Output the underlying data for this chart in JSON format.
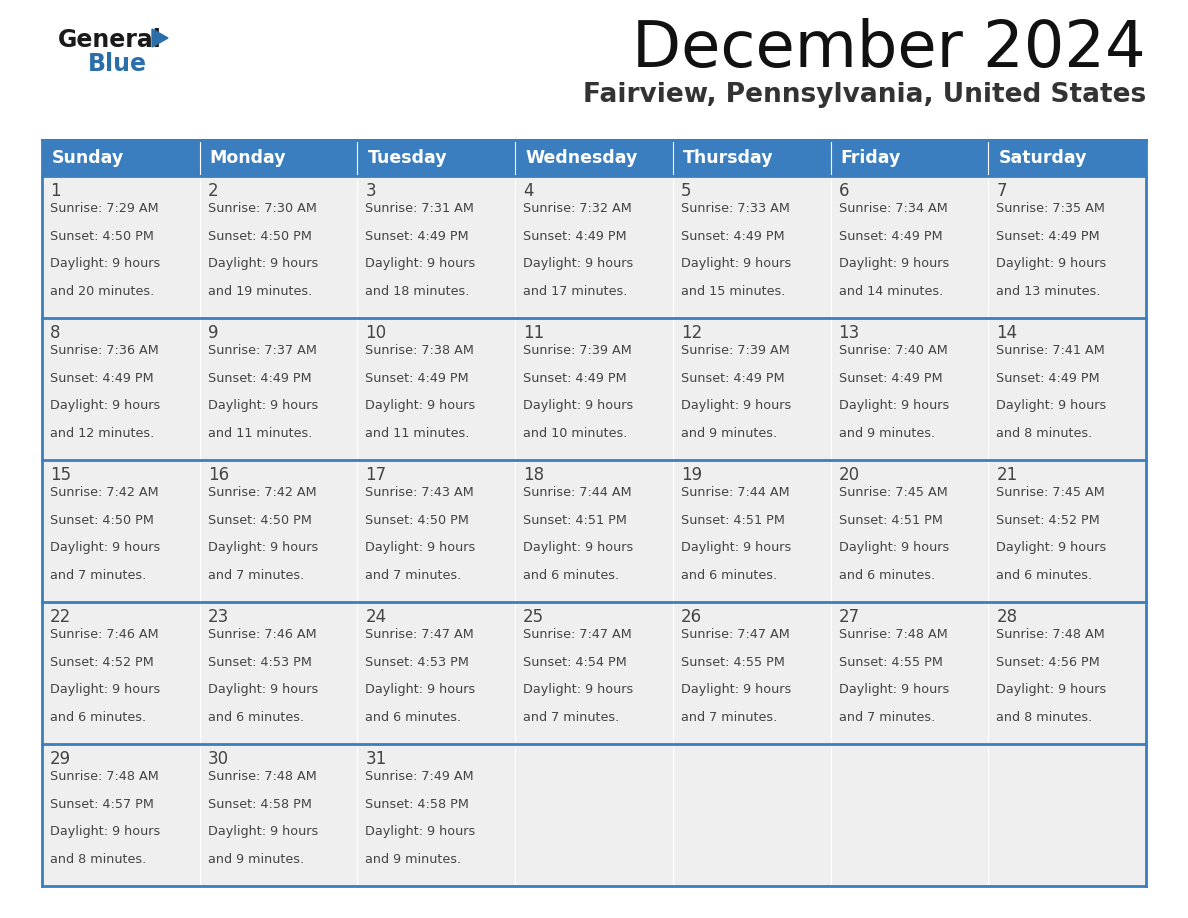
{
  "title": "December 2024",
  "subtitle": "Fairview, Pennsylvania, United States",
  "header_color": "#3A7EBF",
  "header_text_color": "#FFFFFF",
  "cell_bg_color": "#EFEFEF",
  "text_color": "#444444",
  "border_color": "#3A7EBF",
  "days_of_week": [
    "Sunday",
    "Monday",
    "Tuesday",
    "Wednesday",
    "Thursday",
    "Friday",
    "Saturday"
  ],
  "calendar_data": [
    [
      {
        "day": 1,
        "sunrise": "7:29 AM",
        "sunset": "4:50 PM",
        "daylight": "9 hours and 20 minutes"
      },
      {
        "day": 2,
        "sunrise": "7:30 AM",
        "sunset": "4:50 PM",
        "daylight": "9 hours and 19 minutes"
      },
      {
        "day": 3,
        "sunrise": "7:31 AM",
        "sunset": "4:49 PM",
        "daylight": "9 hours and 18 minutes"
      },
      {
        "day": 4,
        "sunrise": "7:32 AM",
        "sunset": "4:49 PM",
        "daylight": "9 hours and 17 minutes"
      },
      {
        "day": 5,
        "sunrise": "7:33 AM",
        "sunset": "4:49 PM",
        "daylight": "9 hours and 15 minutes"
      },
      {
        "day": 6,
        "sunrise": "7:34 AM",
        "sunset": "4:49 PM",
        "daylight": "9 hours and 14 minutes"
      },
      {
        "day": 7,
        "sunrise": "7:35 AM",
        "sunset": "4:49 PM",
        "daylight": "9 hours and 13 minutes"
      }
    ],
    [
      {
        "day": 8,
        "sunrise": "7:36 AM",
        "sunset": "4:49 PM",
        "daylight": "9 hours and 12 minutes"
      },
      {
        "day": 9,
        "sunrise": "7:37 AM",
        "sunset": "4:49 PM",
        "daylight": "9 hours and 11 minutes"
      },
      {
        "day": 10,
        "sunrise": "7:38 AM",
        "sunset": "4:49 PM",
        "daylight": "9 hours and 11 minutes"
      },
      {
        "day": 11,
        "sunrise": "7:39 AM",
        "sunset": "4:49 PM",
        "daylight": "9 hours and 10 minutes"
      },
      {
        "day": 12,
        "sunrise": "7:39 AM",
        "sunset": "4:49 PM",
        "daylight": "9 hours and 9 minutes"
      },
      {
        "day": 13,
        "sunrise": "7:40 AM",
        "sunset": "4:49 PM",
        "daylight": "9 hours and 9 minutes"
      },
      {
        "day": 14,
        "sunrise": "7:41 AM",
        "sunset": "4:49 PM",
        "daylight": "9 hours and 8 minutes"
      }
    ],
    [
      {
        "day": 15,
        "sunrise": "7:42 AM",
        "sunset": "4:50 PM",
        "daylight": "9 hours and 7 minutes"
      },
      {
        "day": 16,
        "sunrise": "7:42 AM",
        "sunset": "4:50 PM",
        "daylight": "9 hours and 7 minutes"
      },
      {
        "day": 17,
        "sunrise": "7:43 AM",
        "sunset": "4:50 PM",
        "daylight": "9 hours and 7 minutes"
      },
      {
        "day": 18,
        "sunrise": "7:44 AM",
        "sunset": "4:51 PM",
        "daylight": "9 hours and 6 minutes"
      },
      {
        "day": 19,
        "sunrise": "7:44 AM",
        "sunset": "4:51 PM",
        "daylight": "9 hours and 6 minutes"
      },
      {
        "day": 20,
        "sunrise": "7:45 AM",
        "sunset": "4:51 PM",
        "daylight": "9 hours and 6 minutes"
      },
      {
        "day": 21,
        "sunrise": "7:45 AM",
        "sunset": "4:52 PM",
        "daylight": "9 hours and 6 minutes"
      }
    ],
    [
      {
        "day": 22,
        "sunrise": "7:46 AM",
        "sunset": "4:52 PM",
        "daylight": "9 hours and 6 minutes"
      },
      {
        "day": 23,
        "sunrise": "7:46 AM",
        "sunset": "4:53 PM",
        "daylight": "9 hours and 6 minutes"
      },
      {
        "day": 24,
        "sunrise": "7:47 AM",
        "sunset": "4:53 PM",
        "daylight": "9 hours and 6 minutes"
      },
      {
        "day": 25,
        "sunrise": "7:47 AM",
        "sunset": "4:54 PM",
        "daylight": "9 hours and 7 minutes"
      },
      {
        "day": 26,
        "sunrise": "7:47 AM",
        "sunset": "4:55 PM",
        "daylight": "9 hours and 7 minutes"
      },
      {
        "day": 27,
        "sunrise": "7:48 AM",
        "sunset": "4:55 PM",
        "daylight": "9 hours and 7 minutes"
      },
      {
        "day": 28,
        "sunrise": "7:48 AM",
        "sunset": "4:56 PM",
        "daylight": "9 hours and 8 minutes"
      }
    ],
    [
      {
        "day": 29,
        "sunrise": "7:48 AM",
        "sunset": "4:57 PM",
        "daylight": "9 hours and 8 minutes"
      },
      {
        "day": 30,
        "sunrise": "7:48 AM",
        "sunset": "4:58 PM",
        "daylight": "9 hours and 9 minutes"
      },
      {
        "day": 31,
        "sunrise": "7:49 AM",
        "sunset": "4:58 PM",
        "daylight": "9 hours and 9 minutes"
      },
      null,
      null,
      null,
      null
    ]
  ],
  "logo_color_general": "#1A1A1A",
  "logo_color_blue": "#2A6EAA",
  "logo_triangle_color": "#2A6EAA",
  "fig_width": 11.88,
  "fig_height": 9.18,
  "dpi": 100
}
